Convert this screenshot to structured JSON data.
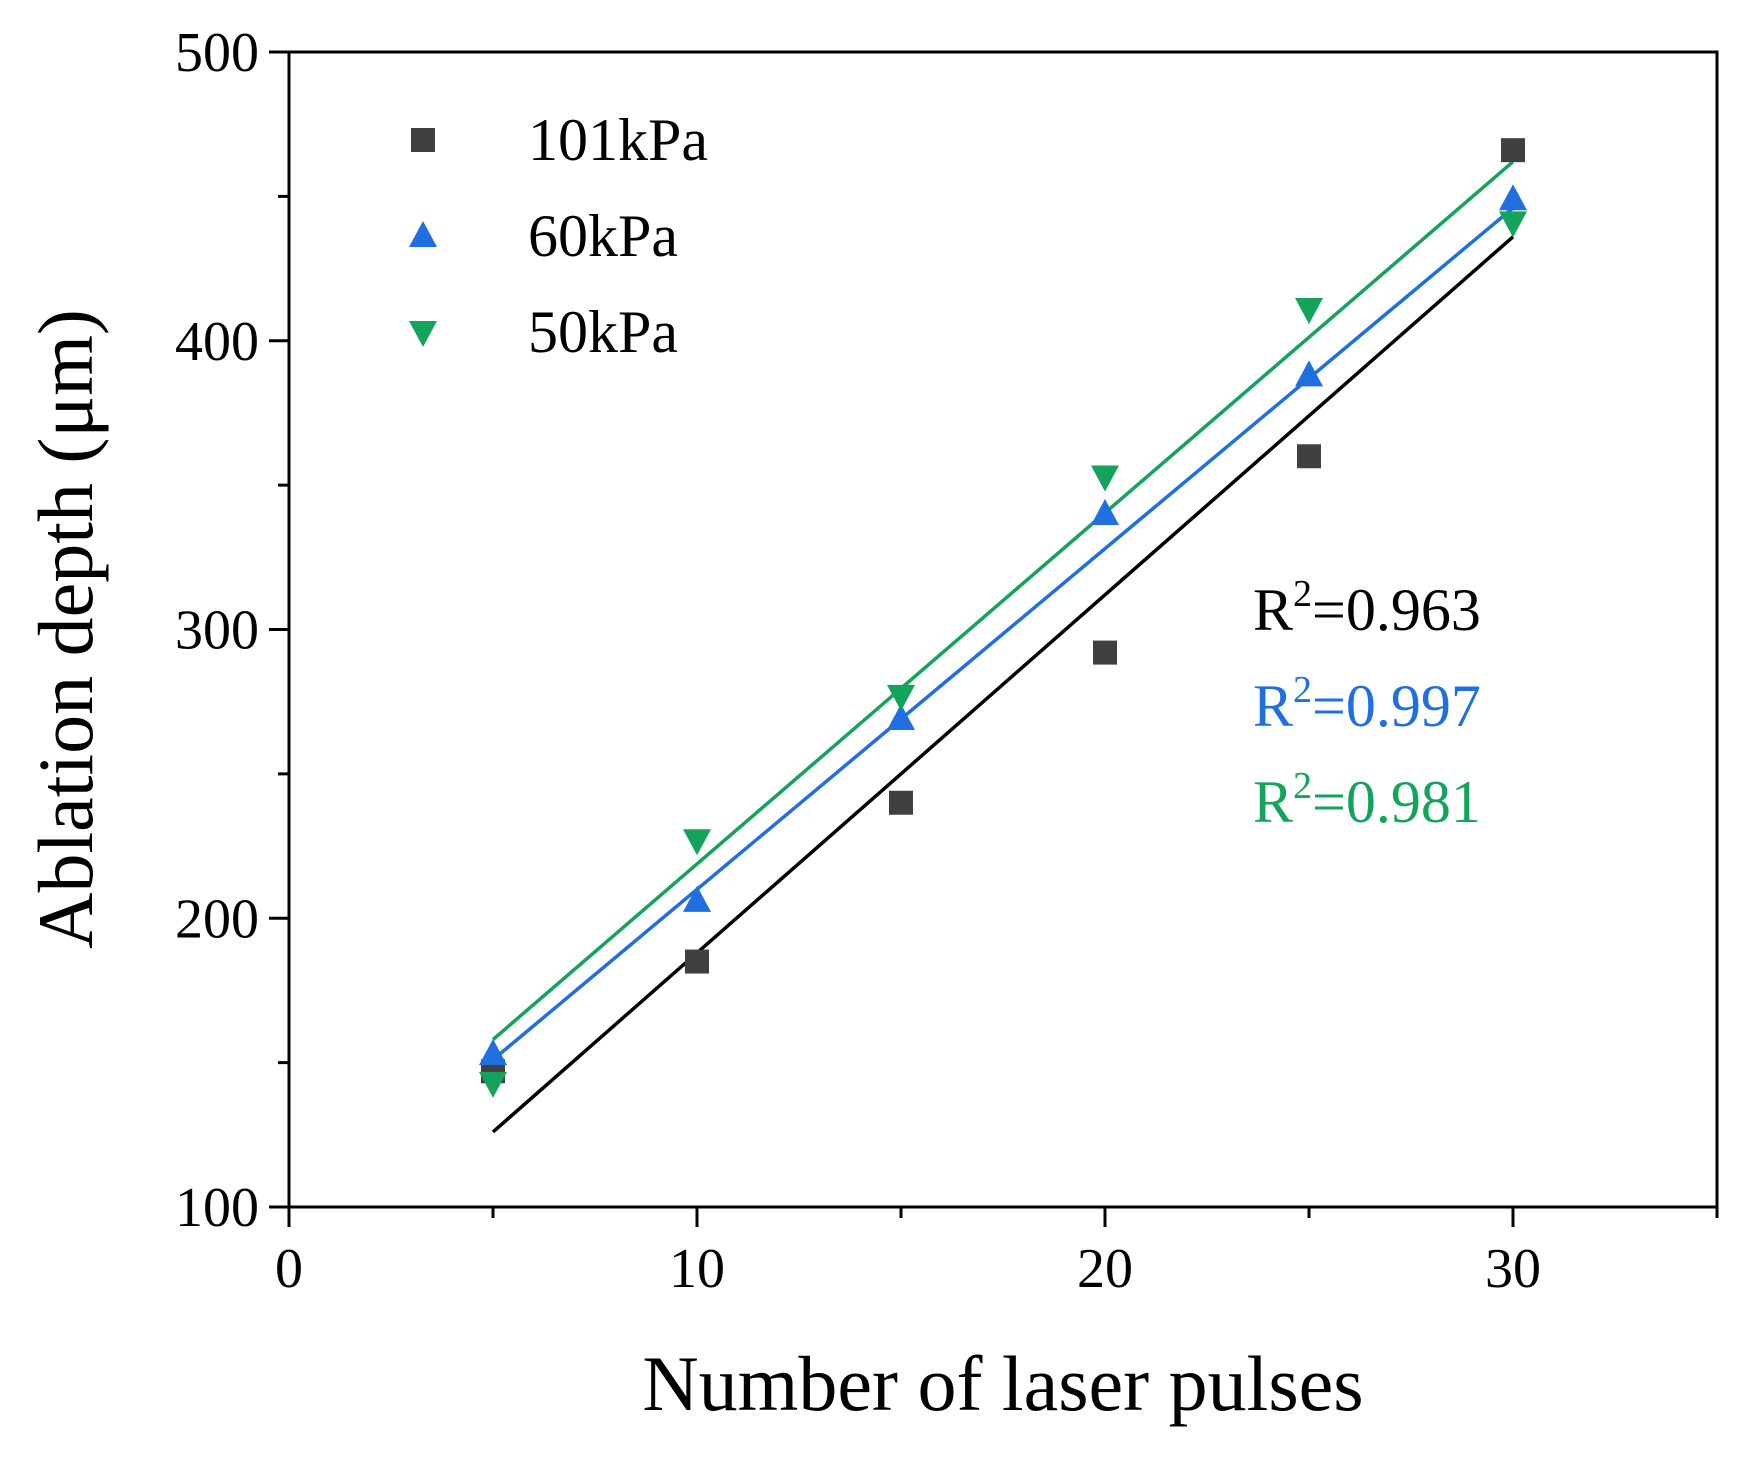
{
  "chart_data": {
    "type": "scatter",
    "title": "",
    "xlabel": "Number of laser pulses",
    "ylabel": "Ablation depth (μm)",
    "xlim": [
      0,
      35
    ],
    "ylim": [
      100,
      500
    ],
    "xticks": [
      0,
      10,
      20,
      30
    ],
    "xticks_minor": [
      5,
      15,
      25,
      35
    ],
    "yticks": [
      100,
      200,
      300,
      400,
      500
    ],
    "yticks_minor": [
      150,
      250,
      350,
      450
    ],
    "grid": false,
    "legend_position": "top-left",
    "series": [
      {
        "name": "101kPa",
        "marker": "square",
        "color": "#404040",
        "fit_color": "#000000",
        "x": [
          5,
          10,
          15,
          20,
          25,
          30
        ],
        "y": [
          147,
          185,
          240,
          292,
          360,
          466
        ],
        "fit": {
          "x": [
            5,
            30
          ],
          "y": [
            126,
            436
          ]
        },
        "r2_prefix": "R",
        "r2_sup": "2",
        "r2_value": "=0.963"
      },
      {
        "name": "60kPa",
        "marker": "triangle-up",
        "color": "#1f6fe0",
        "fit_color": "#1f6fe0",
        "x": [
          5,
          10,
          15,
          20,
          25,
          30
        ],
        "y": [
          153,
          206,
          269,
          340,
          388,
          449
        ],
        "fit": {
          "x": [
            5,
            30
          ],
          "y": [
            151,
            446
          ]
        },
        "r2_prefix": "R",
        "r2_sup": "2",
        "r2_value": "=0.997"
      },
      {
        "name": "50kPa",
        "marker": "triangle-down",
        "color": "#13a35a",
        "fit_color": "#13a35a",
        "x": [
          5,
          10,
          15,
          20,
          25,
          30
        ],
        "y": [
          143,
          227,
          277,
          353,
          411,
          441
        ],
        "fit": {
          "x": [
            5,
            30
          ],
          "y": [
            158,
            462
          ]
        },
        "r2_prefix": "R",
        "r2_sup": "2",
        "r2_value": "=0.981"
      }
    ]
  }
}
